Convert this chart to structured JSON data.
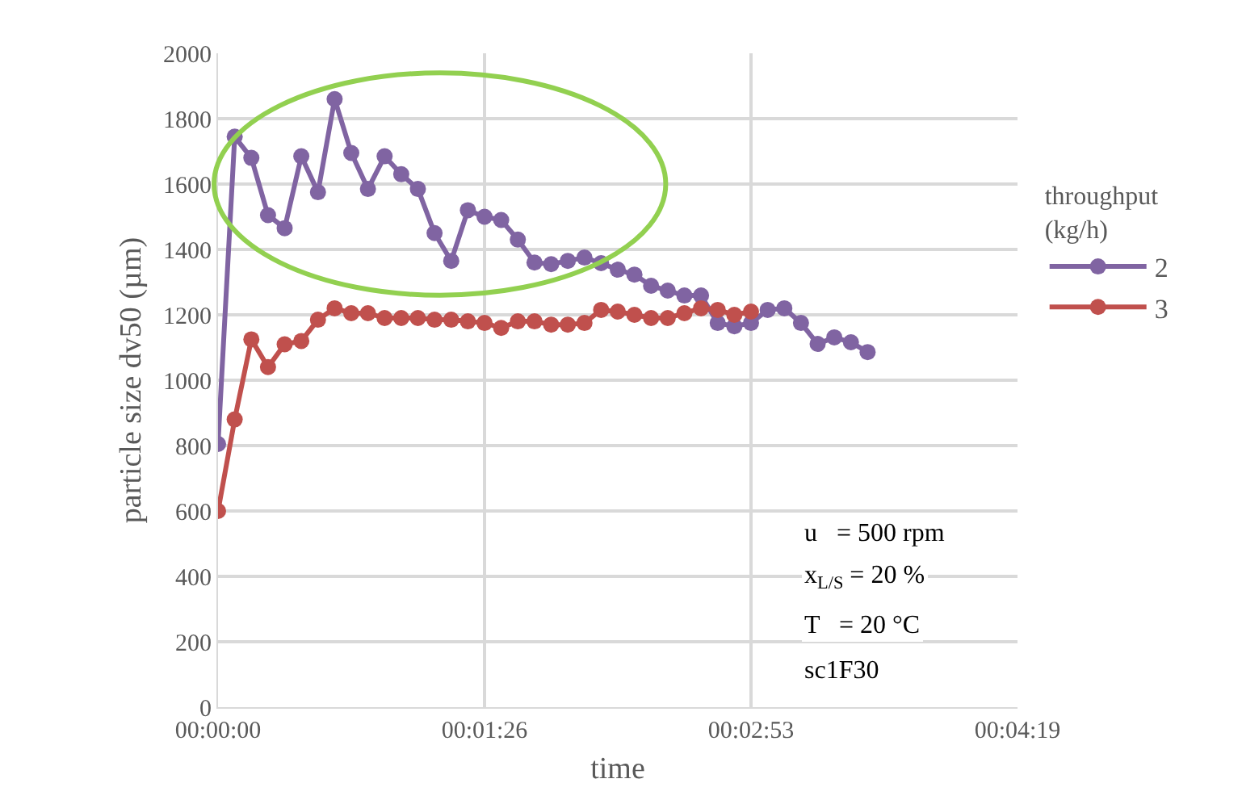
{
  "chart_data": {
    "type": "line",
    "xlabel": "time",
    "ylabel": "particle size dv50 (µm)",
    "legend_title": "throughput\n(kg/h)",
    "xlim": [
      0,
      0.072
    ],
    "xticks": [
      {
        "value": 0,
        "label": "00:00:00"
      },
      {
        "value": 0.024,
        "label": "00:01:26"
      },
      {
        "value": 0.048,
        "label": "00:02:53"
      },
      {
        "value": 0.072,
        "label": "00:04:19"
      }
    ],
    "ylim": [
      0,
      2000
    ],
    "yticks": [
      0,
      200,
      400,
      600,
      800,
      1000,
      1200,
      1400,
      1600,
      1800,
      2000
    ],
    "grid": true,
    "legend": "right",
    "marker": "circle",
    "line_style": "solid",
    "series": [
      {
        "name": "2",
        "color": "#8064a2",
        "x": [
          0,
          0.0015,
          0.003,
          0.0045,
          0.006,
          0.0075,
          0.009,
          0.0105,
          0.012,
          0.0135,
          0.015,
          0.0165,
          0.018,
          0.0195,
          0.021,
          0.0225,
          0.024,
          0.0255,
          0.027,
          0.0285,
          0.03,
          0.0315,
          0.033,
          0.0345,
          0.036,
          0.0375,
          0.039,
          0.0405,
          0.042,
          0.0435,
          0.045,
          0.0465,
          0.048,
          0.0495,
          0.051,
          0.0525,
          0.054,
          0.0555,
          0.057,
          0.0585
        ],
        "values": [
          805,
          1745,
          1680,
          1505,
          1465,
          1685,
          1575,
          1860,
          1695,
          1585,
          1685,
          1630,
          1585,
          1450,
          1365,
          1520,
          1500,
          1490,
          1430,
          1360,
          1355,
          1365,
          1375,
          1358,
          1338,
          1323,
          1289,
          1274,
          1259,
          1259,
          1175,
          1165,
          1175,
          1215,
          1220,
          1175,
          1111,
          1131,
          1116,
          1086
        ]
      },
      {
        "name": "3",
        "color": "#c0504d",
        "x": [
          0,
          0.0015,
          0.003,
          0.0045,
          0.006,
          0.0075,
          0.009,
          0.0105,
          0.012,
          0.0135,
          0.015,
          0.0165,
          0.018,
          0.0195,
          0.021,
          0.0225,
          0.024,
          0.0255,
          0.027,
          0.0285,
          0.03,
          0.0315,
          0.033,
          0.0345,
          0.036,
          0.0375,
          0.039,
          0.0405,
          0.042,
          0.0435,
          0.045,
          0.0465,
          0.048
        ],
        "values": [
          600,
          880,
          1125,
          1040,
          1110,
          1120,
          1185,
          1220,
          1205,
          1205,
          1190,
          1190,
          1190,
          1185,
          1185,
          1180,
          1175,
          1160,
          1180,
          1180,
          1170,
          1170,
          1175,
          1215,
          1210,
          1200,
          1190,
          1190,
          1205,
          1220,
          1215,
          1200,
          1210
        ]
      }
    ],
    "annotations": [
      "u   = 500 rpm",
      "x$_{L/S}$ = 20 %",
      "T   = 20 °C",
      "sc1F30"
    ]
  }
}
